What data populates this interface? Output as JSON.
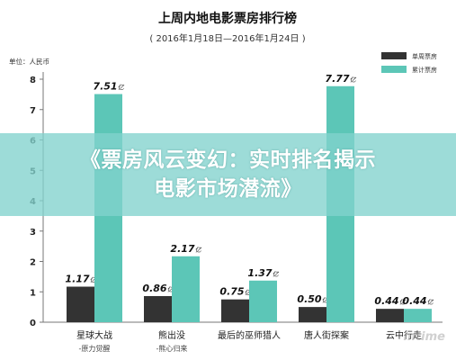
{
  "chart_data": {
    "type": "bar",
    "title": "上周内地电影票房排行榜",
    "subtitle": "( 2016年1月18日—2016年1月24日 )",
    "ylabel": "单位：人民币",
    "ylim": [
      0,
      8
    ],
    "yticks": [
      "0",
      "1",
      "2",
      "3",
      "4",
      "5",
      "6",
      "7",
      "8"
    ],
    "grid": false,
    "legend_position": "top-right",
    "categories": [
      {
        "name": "星球大战",
        "sub": "-原力觉醒"
      },
      {
        "name": "熊出没",
        "sub": "-熊心归来"
      },
      {
        "name": "最后的巫师猎人",
        "sub": ""
      },
      {
        "name": "唐人街探案",
        "sub": ""
      },
      {
        "name": "云中行走",
        "sub": ""
      }
    ],
    "series": [
      {
        "name": "单周票房",
        "color": "#333333",
        "values": [
          1.17,
          0.86,
          0.75,
          0.5,
          0.44
        ],
        "labels": [
          "1.17",
          "0.86",
          "0.75",
          "0.50",
          "0.44"
        ]
      },
      {
        "name": "累计票房",
        "color": "#5cc6b7",
        "values": [
          7.51,
          2.17,
          1.37,
          7.77,
          0.44
        ],
        "labels": [
          "7.51",
          "2.17",
          "1.37",
          "7.77",
          "0.44"
        ]
      }
    ],
    "value_unit": "亿"
  },
  "overlay": {
    "line1": "《票房风云变幻：实时排名揭示",
    "line2": "电影市场潜流》"
  },
  "watermark": "mtime"
}
